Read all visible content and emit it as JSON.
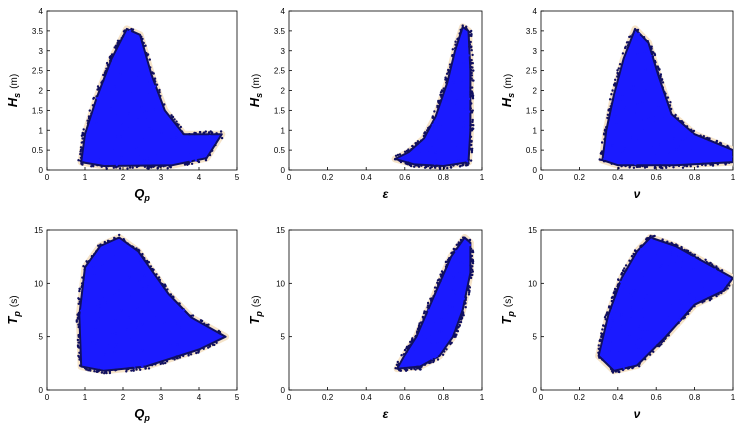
{
  "figure": {
    "background": "#ffffff",
    "point_color": "#1a1aff",
    "point_edge": "#101060",
    "halo_color": "#f5e3c8",
    "axis_color": "#000000"
  },
  "chart_data": [
    {
      "type": "scatter",
      "xlabel_parts": [
        "Q",
        "p"
      ],
      "ylabel_parts": [
        "H",
        "s",
        "(m)"
      ],
      "xlim": [
        0,
        5
      ],
      "ylim": [
        0,
        4
      ],
      "xticks": [
        "0",
        "1",
        "2",
        "3",
        "4",
        "5"
      ],
      "yticks": [
        "0",
        "0.5",
        "1",
        "1.5",
        "2",
        "2.5",
        "3",
        "3.5",
        "4"
      ],
      "cloud": [
        [
          0.9,
          0.2
        ],
        [
          1.0,
          0.9
        ],
        [
          1.3,
          1.8
        ],
        [
          1.7,
          2.8
        ],
        [
          2.1,
          3.55
        ],
        [
          2.45,
          3.4
        ],
        [
          2.75,
          2.4
        ],
        [
          3.1,
          1.5
        ],
        [
          3.6,
          0.9
        ],
        [
          4.6,
          0.9
        ],
        [
          4.2,
          0.3
        ],
        [
          3.3,
          0.12
        ],
        [
          1.5,
          0.1
        ]
      ]
    },
    {
      "type": "scatter",
      "xlabel_parts": [
        "ε",
        ""
      ],
      "ylabel_parts": [
        "H",
        "s",
        "(m)"
      ],
      "xlim": [
        0,
        1
      ],
      "ylim": [
        0,
        4
      ],
      "xticks": [
        "0",
        "0.2",
        "0.4",
        "0.6",
        "0.8",
        "1"
      ],
      "yticks": [
        "0",
        "0.5",
        "1",
        "1.5",
        "2",
        "2.5",
        "3",
        "3.5",
        "4"
      ],
      "cloud": [
        [
          0.55,
          0.28
        ],
        [
          0.62,
          0.45
        ],
        [
          0.7,
          0.8
        ],
        [
          0.76,
          1.35
        ],
        [
          0.82,
          2.2
        ],
        [
          0.86,
          3.0
        ],
        [
          0.9,
          3.6
        ],
        [
          0.93,
          3.5
        ],
        [
          0.94,
          2.5
        ],
        [
          0.94,
          1.0
        ],
        [
          0.93,
          0.2
        ],
        [
          0.8,
          0.1
        ],
        [
          0.65,
          0.14
        ]
      ]
    },
    {
      "type": "scatter",
      "xlabel_parts": [
        "ν",
        ""
      ],
      "ylabel_parts": [
        "H",
        "s",
        "(m)"
      ],
      "xlim": [
        0,
        1
      ],
      "ylim": [
        0,
        4
      ],
      "xticks": [
        "0",
        "0.2",
        "0.4",
        "0.6",
        "0.8",
        "1"
      ],
      "yticks": [
        "0",
        "0.5",
        "1",
        "1.5",
        "2",
        "2.5",
        "3",
        "3.5",
        "4"
      ],
      "cloud": [
        [
          0.32,
          0.25
        ],
        [
          0.34,
          1.0
        ],
        [
          0.38,
          1.9
        ],
        [
          0.43,
          2.8
        ],
        [
          0.49,
          3.55
        ],
        [
          0.56,
          3.2
        ],
        [
          0.61,
          2.4
        ],
        [
          0.68,
          1.4
        ],
        [
          0.8,
          0.9
        ],
        [
          1.0,
          0.5
        ],
        [
          1.0,
          0.2
        ],
        [
          0.7,
          0.12
        ],
        [
          0.4,
          0.12
        ]
      ]
    },
    {
      "type": "scatter",
      "xlabel_parts": [
        "Q",
        "p"
      ],
      "ylabel_parts": [
        "T",
        "p",
        "(s)"
      ],
      "xlim": [
        0,
        5
      ],
      "ylim": [
        0,
        15
      ],
      "xticks": [
        "0",
        "1",
        "2",
        "3",
        "4",
        "5"
      ],
      "yticks": [
        "0",
        "5",
        "10",
        "15"
      ],
      "cloud": [
        [
          0.9,
          2.2
        ],
        [
          0.85,
          7.0
        ],
        [
          1.0,
          11.5
        ],
        [
          1.4,
          13.5
        ],
        [
          1.9,
          14.3
        ],
        [
          2.4,
          13.0
        ],
        [
          2.8,
          11.0
        ],
        [
          3.2,
          9.0
        ],
        [
          3.8,
          6.8
        ],
        [
          4.7,
          5.0
        ],
        [
          4.0,
          3.8
        ],
        [
          2.6,
          2.2
        ],
        [
          1.5,
          1.8
        ]
      ]
    },
    {
      "type": "scatter",
      "xlabel_parts": [
        "ε",
        ""
      ],
      "ylabel_parts": [
        "T",
        "p",
        "(s)"
      ],
      "xlim": [
        0,
        1
      ],
      "ylim": [
        0,
        15
      ],
      "xticks": [
        "0",
        "0.2",
        "0.4",
        "0.6",
        "0.8",
        "1"
      ],
      "yticks": [
        "0",
        "5",
        "10",
        "15"
      ],
      "cloud": [
        [
          0.56,
          2.0
        ],
        [
          0.6,
          3.3
        ],
        [
          0.66,
          5.0
        ],
        [
          0.72,
          7.5
        ],
        [
          0.78,
          10.0
        ],
        [
          0.84,
          12.5
        ],
        [
          0.91,
          14.3
        ],
        [
          0.94,
          13.8
        ],
        [
          0.94,
          11.0
        ],
        [
          0.9,
          7.5
        ],
        [
          0.85,
          5.0
        ],
        [
          0.78,
          3.2
        ],
        [
          0.68,
          2.2
        ]
      ]
    },
    {
      "type": "scatter",
      "xlabel_parts": [
        "ν",
        ""
      ],
      "ylabel_parts": [
        "T",
        "p",
        "(s)"
      ],
      "xlim": [
        0,
        1
      ],
      "ylim": [
        0,
        15
      ],
      "xticks": [
        "0",
        "0.2",
        "0.4",
        "0.6",
        "0.8",
        "1"
      ],
      "yticks": [
        "0",
        "5",
        "10",
        "15"
      ],
      "cloud": [
        [
          0.3,
          3.2
        ],
        [
          0.35,
          7.0
        ],
        [
          0.42,
          10.5
        ],
        [
          0.5,
          13.0
        ],
        [
          0.57,
          14.3
        ],
        [
          0.7,
          13.5
        ],
        [
          0.85,
          12.0
        ],
        [
          1.0,
          10.5
        ],
        [
          0.95,
          9.3
        ],
        [
          0.8,
          8.0
        ],
        [
          0.65,
          5.0
        ],
        [
          0.5,
          2.3
        ],
        [
          0.38,
          1.8
        ]
      ]
    }
  ]
}
